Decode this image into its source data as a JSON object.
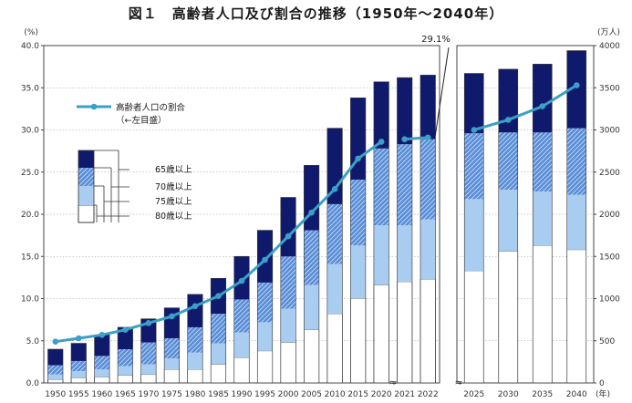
{
  "title": "図１　高齢者人口及び割合の推移（1950年～2040年）",
  "chart_data": {
    "type": "bar",
    "stacked": true,
    "left_axis": {
      "unit_label": "(%)",
      "range": [
        0,
        40
      ],
      "ticks": [
        "0.0",
        "5.0",
        "10.0",
        "15.0",
        "20.0",
        "25.0",
        "30.0",
        "35.0",
        "40.0"
      ]
    },
    "right_axis": {
      "unit_label": "(万人)",
      "range": [
        0,
        4000
      ],
      "ticks": [
        "0",
        "500",
        "1000",
        "1500",
        "2000",
        "2500",
        "3000",
        "3500",
        "4000"
      ]
    },
    "x_unit_label": "(年)",
    "panels": [
      {
        "name": "actual",
        "categories": [
          "1950",
          "1955",
          "1960",
          "1965",
          "1970",
          "1975",
          "1980",
          "1985",
          "1990",
          "1995",
          "2000",
          "2005",
          "2010",
          "2015",
          "2020",
          "2021",
          "2022"
        ]
      },
      {
        "name": "projection",
        "categories": [
          "2025",
          "2030",
          "2035",
          "2040"
        ]
      }
    ],
    "categories": [
      "1950",
      "1955",
      "1960",
      "1965",
      "1970",
      "1975",
      "1980",
      "1985",
      "1990",
      "1995",
      "2000",
      "2005",
      "2010",
      "2015",
      "2020",
      "2021",
      "2022",
      "2025",
      "2030",
      "2035",
      "2040"
    ],
    "series": [
      {
        "name": "80歳以上",
        "values": [
          40,
          60,
          70,
          90,
          100,
          160,
          160,
          220,
          300,
          380,
          480,
          630,
          820,
          1000,
          1160,
          1200,
          1230,
          1330,
          1560,
          1630,
          1580
        ],
        "color": "#ffffff"
      },
      {
        "name": "75歳以上",
        "values": [
          60,
          80,
          90,
          110,
          120,
          130,
          200,
          250,
          300,
          340,
          400,
          530,
          590,
          630,
          710,
          670,
          710,
          850,
          730,
          640,
          650
        ],
        "color": "#a9cdf0"
      },
      {
        "name": "70歳以上",
        "values": [
          110,
          120,
          160,
          200,
          260,
          240,
          300,
          350,
          390,
          470,
          620,
          650,
          710,
          780,
          910,
          960,
          950,
          780,
          680,
          700,
          790
        ],
        "color": "#5b8ed8"
      },
      {
        "name": "65歳以上",
        "values": [
          190,
          210,
          250,
          260,
          280,
          360,
          390,
          420,
          510,
          620,
          700,
          770,
          900,
          970,
          790,
          790,
          760,
          710,
          750,
          810,
          920
        ],
        "color": "#101a6c"
      }
    ],
    "line": {
      "name": "高齢者人口の割合",
      "sublabel": "（←左目盛）",
      "axis": "left",
      "color": "#3aa0c8",
      "values": [
        4.9,
        5.3,
        5.7,
        6.3,
        7.1,
        7.9,
        9.1,
        10.3,
        12.1,
        14.6,
        17.4,
        20.2,
        23.0,
        26.6,
        28.6,
        28.9,
        29.1,
        30.0,
        31.2,
        32.8,
        35.3
      ]
    },
    "annotation": "29.1%",
    "axis_break_symbol": "≈"
  }
}
